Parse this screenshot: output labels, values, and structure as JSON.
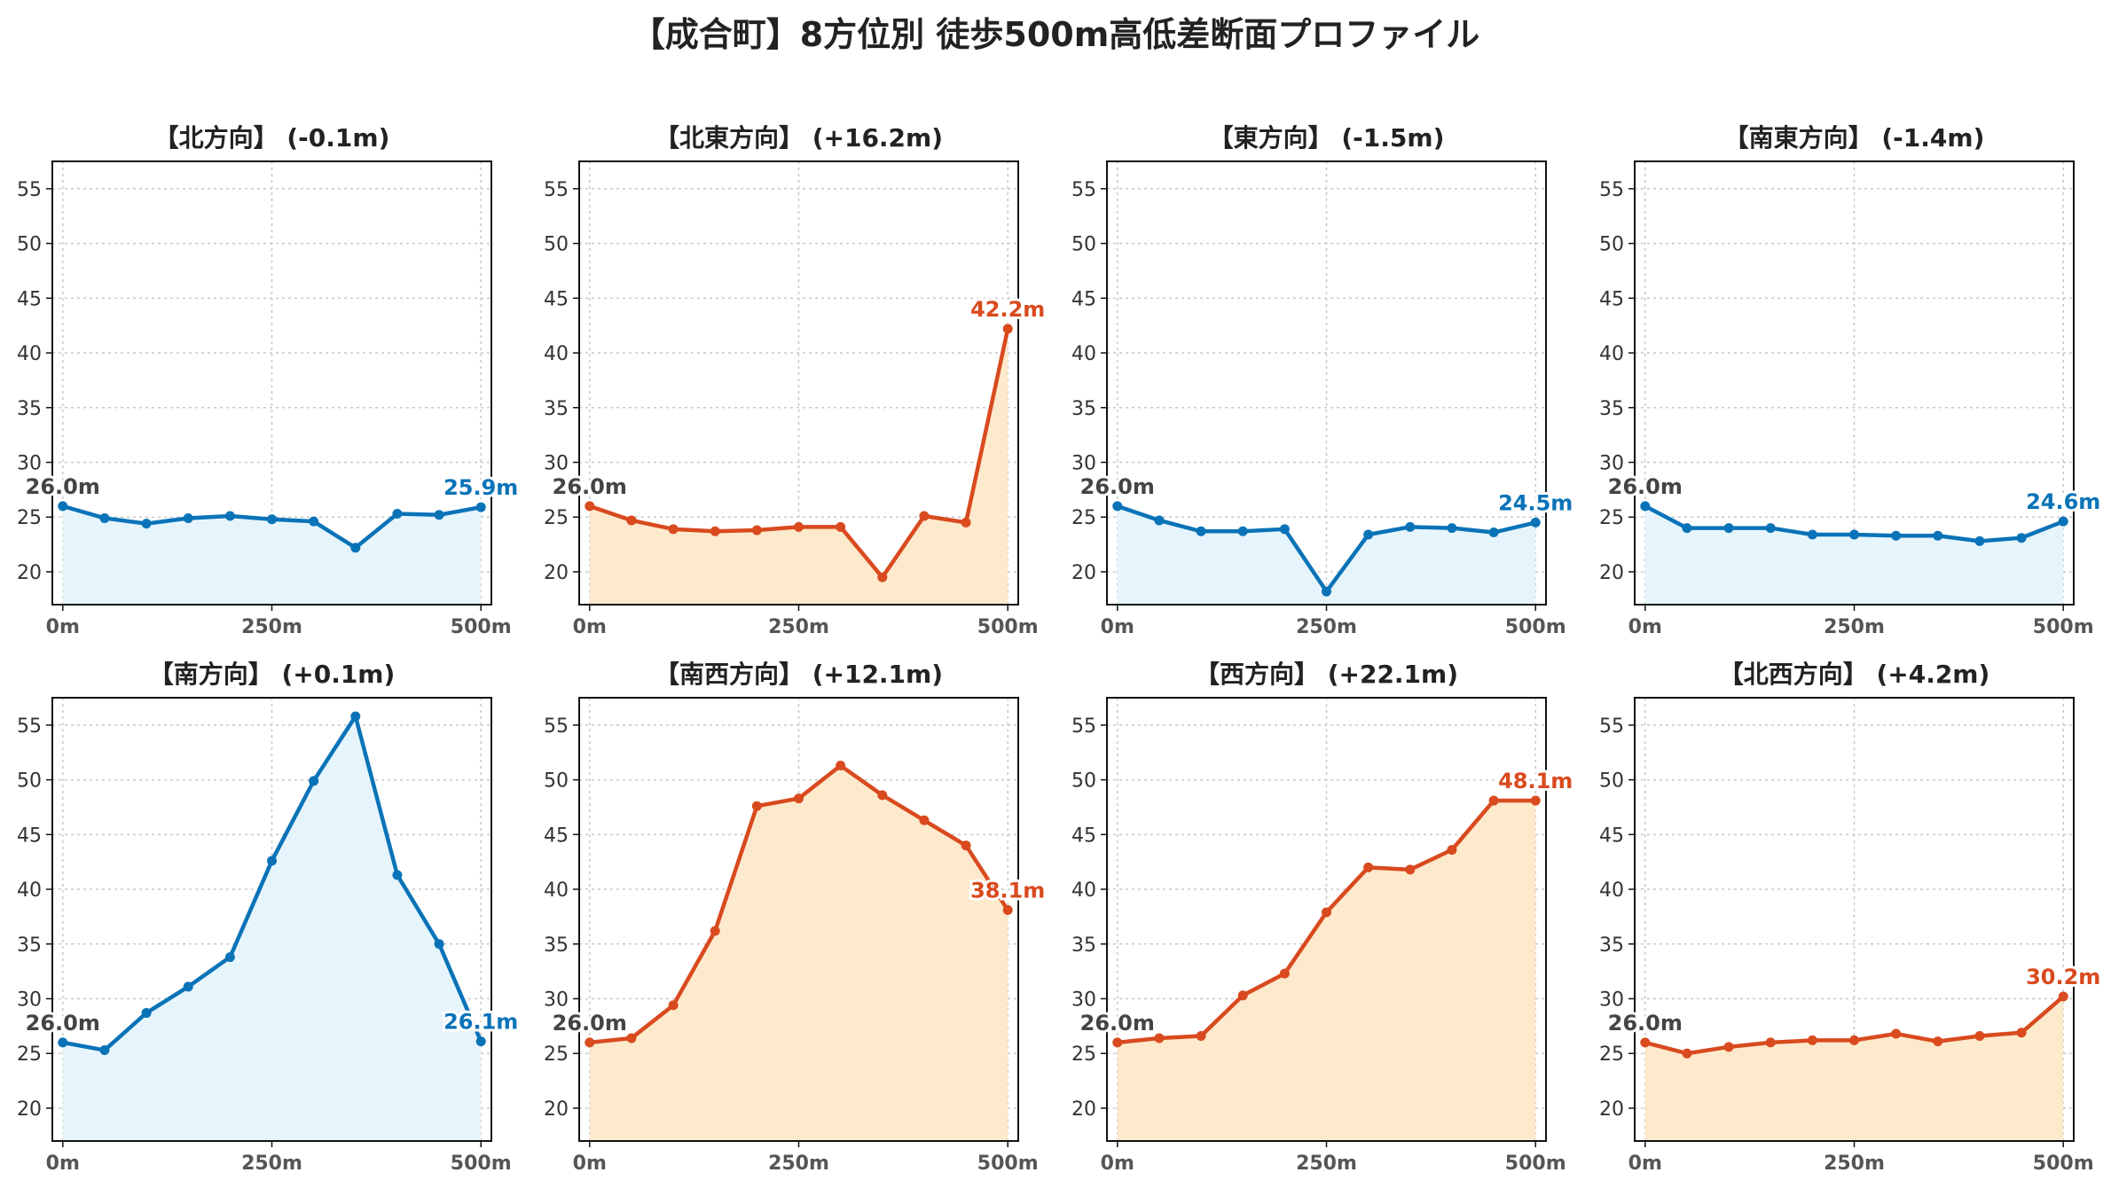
{
  "title": "【成合町】8方位別 徒歩500m高低差断面プロファイル",
  "colors": {
    "uphill": "#d94a1e",
    "uphill_fill": "#fde9cc",
    "downhill": "#0a73b8",
    "downhill_fill": "#e6f5fc",
    "start_label": "#444444"
  },
  "chart_data": [
    {
      "type": "area",
      "title": "【北方向】 (-0.1m)",
      "trend": "down",
      "x": [
        0,
        50,
        100,
        150,
        200,
        250,
        300,
        350,
        400,
        450,
        500
      ],
      "values": [
        26.0,
        24.9,
        24.4,
        24.9,
        25.1,
        24.8,
        24.6,
        22.2,
        25.3,
        25.2,
        25.9
      ],
      "start_label": "26.0m",
      "end_label": "25.9m"
    },
    {
      "type": "area",
      "title": "【北東方向】 (+16.2m)",
      "trend": "up",
      "x": [
        0,
        50,
        100,
        150,
        200,
        250,
        300,
        350,
        400,
        450,
        500
      ],
      "values": [
        26.0,
        24.7,
        23.9,
        23.7,
        23.8,
        24.1,
        24.1,
        19.5,
        25.1,
        24.5,
        42.2
      ],
      "start_label": "26.0m",
      "end_label": "42.2m"
    },
    {
      "type": "area",
      "title": "【東方向】 (-1.5m)",
      "trend": "down",
      "x": [
        0,
        50,
        100,
        150,
        200,
        250,
        300,
        350,
        400,
        450,
        500
      ],
      "values": [
        26.0,
        24.7,
        23.7,
        23.7,
        23.9,
        18.2,
        23.4,
        24.1,
        24.0,
        23.6,
        24.5
      ],
      "start_label": "26.0m",
      "end_label": "24.5m"
    },
    {
      "type": "area",
      "title": "【南東方向】 (-1.4m)",
      "trend": "down",
      "x": [
        0,
        50,
        100,
        150,
        200,
        250,
        300,
        350,
        400,
        450,
        500
      ],
      "values": [
        26.0,
        24.0,
        24.0,
        24.0,
        23.4,
        23.4,
        23.3,
        23.3,
        22.8,
        23.1,
        24.6
      ],
      "start_label": "26.0m",
      "end_label": "24.6m"
    },
    {
      "type": "area",
      "title": "【南方向】 (+0.1m)",
      "trend": "down",
      "x": [
        0,
        50,
        100,
        150,
        200,
        250,
        300,
        350,
        400,
        450,
        500
      ],
      "values": [
        26.0,
        25.3,
        28.7,
        31.1,
        33.8,
        42.6,
        49.9,
        55.8,
        41.3,
        35.0,
        26.1
      ],
      "start_label": "26.0m",
      "end_label": "26.1m"
    },
    {
      "type": "area",
      "title": "【南西方向】 (+12.1m)",
      "trend": "up",
      "x": [
        0,
        50,
        100,
        150,
        200,
        250,
        300,
        350,
        400,
        450,
        500
      ],
      "values": [
        26.0,
        26.4,
        29.4,
        36.2,
        47.6,
        48.3,
        51.3,
        48.6,
        46.3,
        44.0,
        38.1
      ],
      "start_label": "26.0m",
      "end_label": "38.1m"
    },
    {
      "type": "area",
      "title": "【西方向】 (+22.1m)",
      "trend": "up",
      "x": [
        0,
        50,
        100,
        150,
        200,
        250,
        300,
        350,
        400,
        450,
        500
      ],
      "values": [
        26.0,
        26.4,
        26.6,
        30.3,
        32.3,
        37.9,
        42.0,
        41.8,
        43.6,
        48.1,
        48.1
      ],
      "start_label": "26.0m",
      "end_label": "48.1m"
    },
    {
      "type": "area",
      "title": "【北西方向】 (+4.2m)",
      "trend": "up",
      "x": [
        0,
        50,
        100,
        150,
        200,
        250,
        300,
        350,
        400,
        450,
        500
      ],
      "values": [
        26.0,
        25.0,
        25.6,
        26.0,
        26.2,
        26.2,
        26.8,
        26.1,
        26.6,
        26.9,
        30.2
      ],
      "start_label": "26.0m",
      "end_label": "30.2m"
    }
  ],
  "axes": {
    "ylim": [
      17,
      57.5
    ],
    "xlim": [
      -12.5,
      512.5
    ],
    "yticks": [
      20,
      25,
      30,
      35,
      40,
      45,
      50,
      55
    ],
    "xticks": [
      0,
      250,
      500
    ],
    "xtick_labels": [
      "0m",
      "250m",
      "500m"
    ],
    "grid": true
  }
}
